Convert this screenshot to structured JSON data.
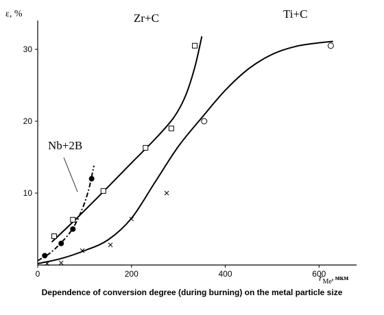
{
  "caption": "Dependence of conversion degree (during burning) on the metal particle size",
  "chart_data": {
    "type": "scatter",
    "xlabel": "r",
    "xlabel_sub": "Me",
    "xlabel_unit": ", мкм",
    "ylabel": "ε, %",
    "xlim": [
      0,
      680
    ],
    "ylim": [
      0,
      34
    ],
    "xticks": [
      0,
      200,
      400,
      600
    ],
    "yticks": [
      10,
      20,
      30
    ],
    "grid": false,
    "series": [
      {
        "name": "Zr+C",
        "marker": "open-square",
        "points": [
          [
            35,
            4
          ],
          [
            75,
            6.3
          ],
          [
            140,
            10.3
          ],
          [
            230,
            16.3
          ],
          [
            285,
            19
          ],
          [
            335,
            30.5
          ]
        ],
        "curve": [
          [
            30,
            3.2
          ],
          [
            80,
            6.3
          ],
          [
            140,
            10.2
          ],
          [
            200,
            14.2
          ],
          [
            250,
            17.5
          ],
          [
            290,
            20.5
          ],
          [
            315,
            23.5
          ],
          [
            335,
            27.5
          ],
          [
            350,
            31.8
          ]
        ]
      },
      {
        "name": "Ti+C",
        "marker": "open-circle",
        "points": [
          [
            355,
            20
          ],
          [
            625,
            30.5
          ]
        ],
        "curve": [
          [
            0,
            0.2
          ],
          [
            50,
            0.9
          ],
          [
            100,
            2.0
          ],
          [
            150,
            3.5
          ],
          [
            200,
            6.5
          ],
          [
            250,
            11.5
          ],
          [
            300,
            16.5
          ],
          [
            350,
            20.5
          ],
          [
            400,
            24.3
          ],
          [
            450,
            27.3
          ],
          [
            500,
            29.3
          ],
          [
            550,
            30.4
          ],
          [
            600,
            30.9
          ],
          [
            630,
            31.1
          ]
        ]
      },
      {
        "name": "Nb+2B",
        "marker": "filled-circle",
        "points": [
          [
            15,
            1.3
          ],
          [
            50,
            3
          ],
          [
            75,
            5
          ],
          [
            115,
            12
          ]
        ],
        "curve": [
          [
            0,
            0.6
          ],
          [
            25,
            1.6
          ],
          [
            50,
            3.1
          ],
          [
            75,
            5.1
          ],
          [
            95,
            7.8
          ],
          [
            108,
            10.3
          ],
          [
            115,
            12.3
          ],
          [
            120,
            13.8
          ]
        ]
      },
      {
        "name": "",
        "marker": "cross",
        "points": [
          [
            20,
            0.2
          ],
          [
            50,
            0.3
          ],
          [
            95,
            2.0
          ],
          [
            155,
            2.8
          ],
          [
            200,
            6.4
          ],
          [
            275,
            10
          ]
        ]
      }
    ]
  }
}
